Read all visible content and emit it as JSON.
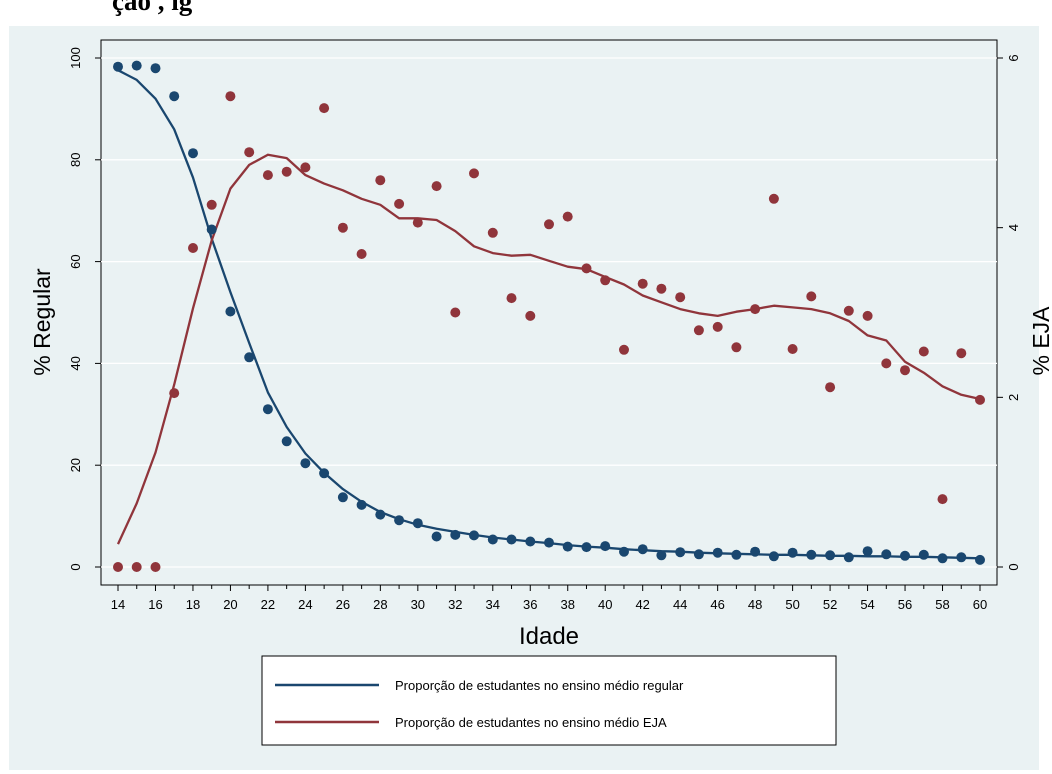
{
  "header_fragment": "ção                                                                                    , ig",
  "chart_data": {
    "type": "scatter+line",
    "title": "",
    "xlabel": "Idade",
    "ylabel_left": "% Regular",
    "ylabel_right": "% EJA",
    "xlim": [
      14,
      60
    ],
    "ylim_left": [
      0,
      100
    ],
    "ylim_right": [
      0,
      6
    ],
    "x_ticks": [
      14,
      16,
      18,
      20,
      22,
      24,
      26,
      28,
      30,
      32,
      34,
      36,
      38,
      40,
      42,
      44,
      46,
      48,
      50,
      52,
      54,
      56,
      58,
      60
    ],
    "y_ticks_left": [
      0,
      20,
      40,
      60,
      80,
      100
    ],
    "y_ticks_right": [
      0,
      2,
      4,
      6
    ],
    "grid": "horizontal",
    "legend_position": "bottom",
    "colors": {
      "regular": "#1a476f",
      "eja": "#90353b",
      "plot_bg": "#eaf2f3",
      "grid": "#ffffff"
    },
    "x": [
      14,
      15,
      16,
      17,
      18,
      19,
      20,
      21,
      22,
      23,
      24,
      25,
      26,
      27,
      28,
      29,
      30,
      31,
      32,
      33,
      34,
      35,
      36,
      37,
      38,
      39,
      40,
      41,
      42,
      43,
      44,
      45,
      46,
      47,
      48,
      49,
      50,
      51,
      52,
      53,
      54,
      55,
      56,
      57,
      58,
      59,
      60
    ],
    "series": [
      {
        "name": "Proporção de estudantes no ensino médio regular",
        "axis": "left",
        "points": [
          98.3,
          98.5,
          98.0,
          92.5,
          81.3,
          66.3,
          50.2,
          41.2,
          31.0,
          24.7,
          20.4,
          18.4,
          13.7,
          12.2,
          10.3,
          9.2,
          8.6,
          6.0,
          6.3,
          6.2,
          5.4,
          5.4,
          5.0,
          4.8,
          4.0,
          3.9,
          4.1,
          3.0,
          3.5,
          2.3,
          2.9,
          2.5,
          2.8,
          2.4,
          3.0,
          2.1,
          2.8,
          2.4,
          2.3,
          1.9,
          3.1,
          2.5,
          2.2,
          2.4,
          1.7,
          1.9,
          1.4
        ],
        "fit": [
          97.6,
          95.7,
          92.0,
          86.0,
          76.5,
          64.5,
          54.0,
          44.0,
          34.3,
          27.5,
          22.3,
          18.5,
          15.3,
          12.8,
          10.8,
          9.4,
          8.3,
          7.5,
          6.9,
          6.3,
          5.8,
          5.4,
          5.0,
          4.7,
          4.3,
          4.0,
          3.8,
          3.5,
          3.3,
          3.1,
          3.0,
          2.8,
          2.7,
          2.6,
          2.5,
          2.4,
          2.4,
          2.3,
          2.2,
          2.2,
          2.1,
          2.1,
          2.0,
          2.0,
          1.9,
          1.8,
          1.7
        ]
      },
      {
        "name": "Proporção de estudantes no ensino médio EJA",
        "axis": "right",
        "points": [
          0,
          0,
          0,
          2.05,
          3.76,
          4.27,
          5.55,
          4.89,
          4.62,
          4.66,
          4.71,
          5.41,
          4.0,
          3.69,
          4.56,
          4.28,
          4.06,
          4.49,
          3.0,
          4.64,
          3.94,
          3.17,
          2.96,
          4.04,
          4.13,
          3.52,
          3.38,
          2.56,
          3.34,
          3.28,
          3.18,
          2.79,
          2.83,
          2.59,
          3.04,
          4.34,
          2.57,
          3.19,
          2.12,
          3.02,
          2.96,
          2.4,
          2.32,
          2.54,
          0.8,
          2.52,
          1.97
        ],
        "fit": [
          0.27,
          0.75,
          1.35,
          2.15,
          3.05,
          3.85,
          4.46,
          4.74,
          4.86,
          4.82,
          4.62,
          4.52,
          4.44,
          4.34,
          4.27,
          4.11,
          4.11,
          4.09,
          3.96,
          3.78,
          3.7,
          3.67,
          3.68,
          3.61,
          3.54,
          3.51,
          3.42,
          3.33,
          3.2,
          3.12,
          3.04,
          2.99,
          2.96,
          3.01,
          3.04,
          3.08,
          3.06,
          3.04,
          2.99,
          2.9,
          2.73,
          2.67,
          2.42,
          2.29,
          2.13,
          2.03,
          1.98
        ]
      }
    ]
  }
}
